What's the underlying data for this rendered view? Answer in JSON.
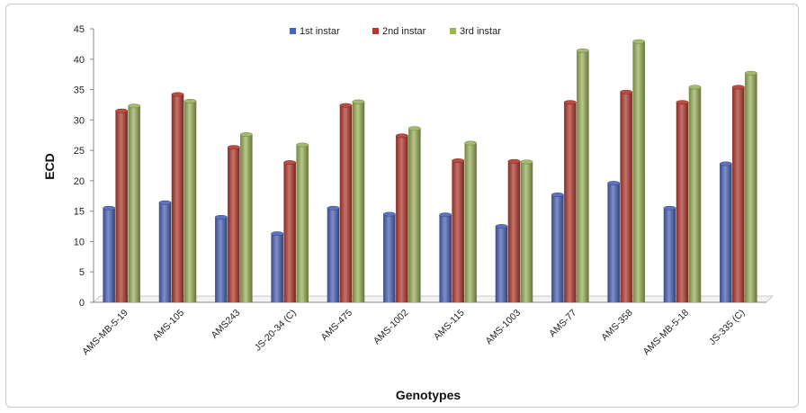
{
  "chart_data": {
    "type": "bar",
    "xlabel": "Genotypes",
    "ylabel": "ECD",
    "ylim": [
      0,
      45
    ],
    "yticks": [
      "0",
      "5",
      "10",
      "15",
      "20",
      "25",
      "30",
      "35",
      "40",
      "45"
    ],
    "categories": [
      "AMS-MB-5-19",
      "AMS-105",
      "AMS243",
      "JS-20-34 (C)",
      "AMS-475",
      "AMS-1002",
      "AMS-115",
      "AMS-1003",
      "AMS-77",
      "AMS-358",
      "AMS-MB-5-18",
      "JS-335 (C)"
    ],
    "series": [
      {
        "name": "1st instar",
        "color": "#4a63b8",
        "values": [
          15.5,
          16.4,
          14.0,
          11.3,
          15.5,
          14.5,
          14.4,
          12.5,
          17.7,
          19.6,
          15.5,
          22.8
        ]
      },
      {
        "name": "2nd instar",
        "color": "#b33a2e",
        "values": [
          31.5,
          34.2,
          25.5,
          23.0,
          32.4,
          27.4,
          23.3,
          23.2,
          32.9,
          34.6,
          32.9,
          35.4
        ]
      },
      {
        "name": "3rd instar",
        "color": "#9bb35a",
        "values": [
          32.3,
          33.1,
          27.6,
          25.9,
          33.0,
          28.6,
          26.2,
          23.1,
          41.4,
          42.9,
          35.4,
          37.7
        ]
      }
    ],
    "grid": false,
    "legend_position": "top-center"
  }
}
